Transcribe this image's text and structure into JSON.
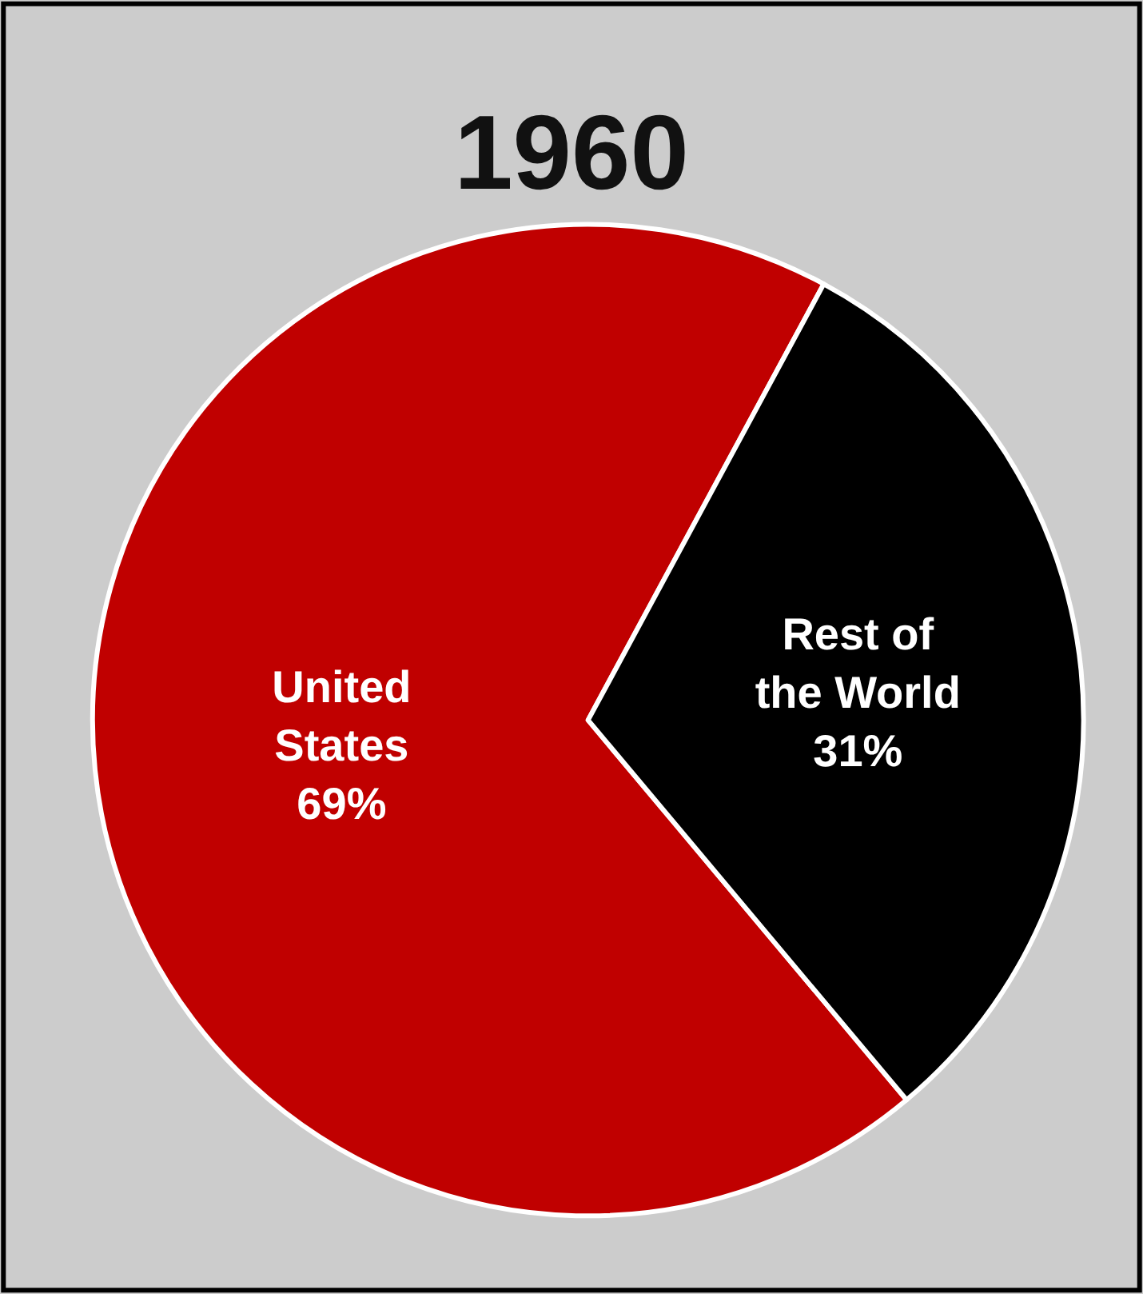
{
  "chart_data": {
    "type": "pie",
    "title": "1960",
    "categories": [
      "United\nStates",
      "Rest of\nthe World"
    ],
    "values": [
      69,
      31
    ],
    "colors": [
      "#c00000",
      "#000000"
    ],
    "value_labels": [
      "69%",
      "31%"
    ],
    "legend": false
  }
}
